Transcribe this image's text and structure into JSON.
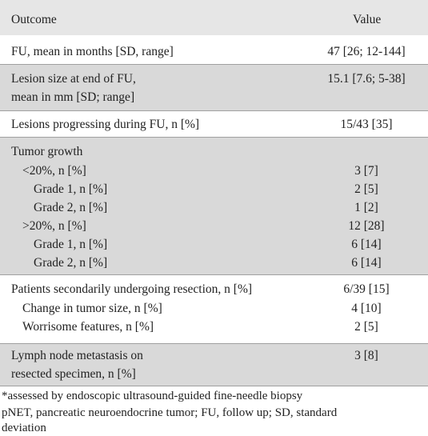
{
  "header": {
    "outcome": "Outcome",
    "value": "Value"
  },
  "rows": [
    {
      "lines": [
        "FU, mean in months [SD, range]"
      ],
      "value": "47 [26; 12-144]"
    },
    {
      "lines": [
        "Lesion size at end of FU,",
        "mean in mm [SD; range]"
      ],
      "value": "15.1 [7.6; 5-38]"
    },
    {
      "lines": [
        "Lesions progressing during FU, n [%]"
      ],
      "value": "15/43 [35]"
    },
    {
      "title": "Tumor growth",
      "sub": [
        {
          "label": "<20%, n [%]",
          "value": "3 [7]"
        },
        {
          "label": "Grade 1, n [%]",
          "value": "2 [5]"
        },
        {
          "label": "Grade 2, n [%]",
          "value": "1 [2]"
        },
        {
          "label": ">20%, n [%]",
          "value": "12 [28]"
        },
        {
          "label": "Grade 1, n [%]",
          "value": "6 [14]"
        },
        {
          "label": "Grade 2, n [%]",
          "value": "6 [14]"
        }
      ]
    },
    {
      "main": "Patients secondarily undergoing resection, n [%]",
      "mainValue": "6/39 [15]",
      "sub": [
        {
          "label": "Change in tumor size, n [%]",
          "value": "4 [10]"
        },
        {
          "label": "Worrisome features, n [%]",
          "value": "2 [5]"
        }
      ]
    },
    {
      "lines": [
        "Lymph node metastasis on",
        "resected specimen, n [%]"
      ],
      "value": "3 [8]"
    }
  ],
  "footnotes": {
    "line1": "*assessed by endoscopic ultrasound-guided fine-needle biopsy",
    "line2": "pNET, pancreatic neuroendocrine tumor; FU, follow up; SD, standard",
    "line3": "deviation"
  }
}
